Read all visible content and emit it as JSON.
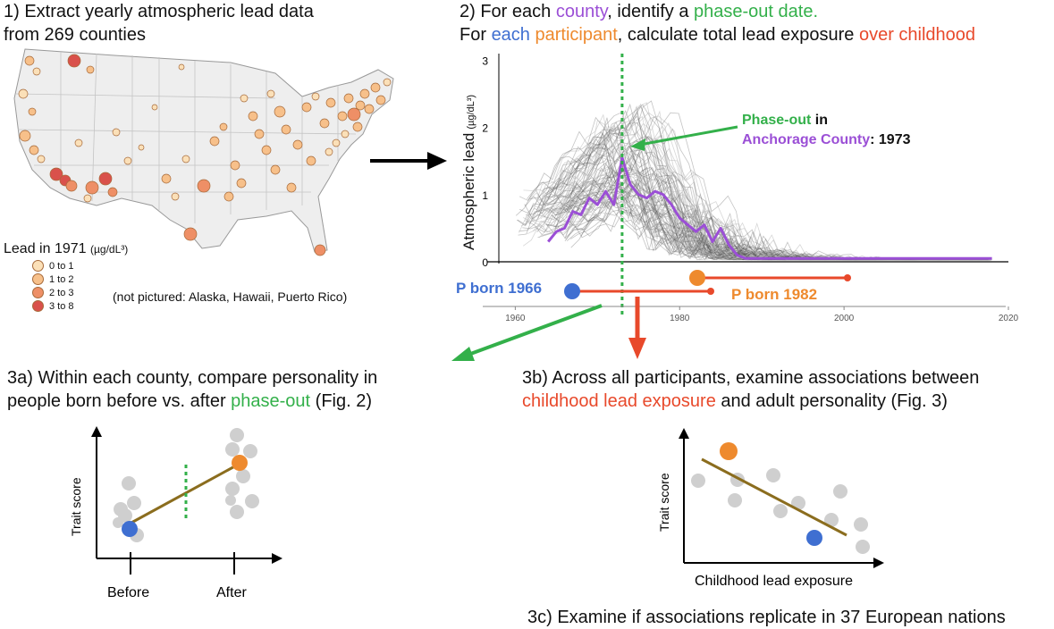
{
  "step1": {
    "line1": "1) Extract yearly atmospheric lead data",
    "line2": "from 269 counties"
  },
  "step2": {
    "line1": {
      "a": "2) For each ",
      "b": "county",
      "c": ", identify a ",
      "d": "phase-out date."
    },
    "line2": {
      "a": "For ",
      "b": "each",
      "c": " ",
      "d": "participant",
      "e": ", calculate total lead exposure ",
      "f": "over childhood"
    }
  },
  "map_legend": {
    "title": "Lead in 1971",
    "unit": "(µg/dL³)",
    "items": [
      {
        "label": "0 to 1",
        "color": "#fbe0b8"
      },
      {
        "label": "1 to 2",
        "color": "#f7c08a"
      },
      {
        "label": "2 to 3",
        "color": "#ee8f66"
      },
      {
        "label": "3 to 8",
        "color": "#d9514b"
      }
    ],
    "note": "(not pictured: Alaska, Hawaii, Puerto Rico)"
  },
  "lead_chart": {
    "ylabel": "Atmospheric lead",
    "yunit": "(µg/dL³)",
    "yticks": [
      "0",
      "1",
      "2",
      "3"
    ],
    "xticks": [
      "1960",
      "1980",
      "2000",
      "2020"
    ],
    "annotation": {
      "a": "Phase-out",
      "b": " in",
      "c": "Anchorage County",
      "d": ": 1973"
    },
    "participants": [
      {
        "label": "P born 1966",
        "color": "#3f6fd1"
      },
      {
        "label": "P born 1982",
        "color": "#ee8a2e"
      }
    ]
  },
  "chart_data": {
    "type": "line",
    "x_range": [
      1958,
      2020
    ],
    "ylim": [
      0,
      3.1
    ],
    "series": [
      {
        "name": "Anchorage County",
        "color": "#9b4fd6",
        "x": [
          1964,
          1965,
          1966,
          1967,
          1968,
          1969,
          1970,
          1971,
          1972,
          1973,
          1974,
          1975,
          1976,
          1977,
          1978,
          1979,
          1980,
          1981,
          1982,
          1983,
          1984,
          1985,
          1986,
          1987,
          1988,
          1990,
          2000,
          2010,
          2018
        ],
        "values": [
          0.3,
          0.45,
          0.5,
          0.75,
          0.7,
          0.95,
          0.85,
          1.05,
          0.85,
          1.55,
          1.15,
          1.0,
          0.95,
          1.05,
          1.0,
          0.85,
          0.65,
          0.55,
          0.45,
          0.55,
          0.3,
          0.5,
          0.25,
          0.1,
          0.05,
          0.05,
          0.05,
          0.05,
          0.05
        ]
      }
    ],
    "phase_out_year": 1973
  },
  "step3a": {
    "line1": "3a) Within each county, compare personality in",
    "line2a": "people born before vs. after ",
    "line2b": "phase-out",
    "line2c": " (Fig. 2)"
  },
  "step3b": {
    "line1": "3b) Across all participants, examine associations between",
    "line2a": "childhood lead exposure",
    "line2b": " and adult personality (Fig. 3)"
  },
  "step3c": "3c) Examine if associations replicate in 37 European nations",
  "plot3a": {
    "ylabel": "Trait score",
    "xlabels": [
      "Before",
      "After"
    ]
  },
  "plot3b": {
    "ylabel": "Trait score",
    "xlabel": "Childhood lead exposure"
  }
}
